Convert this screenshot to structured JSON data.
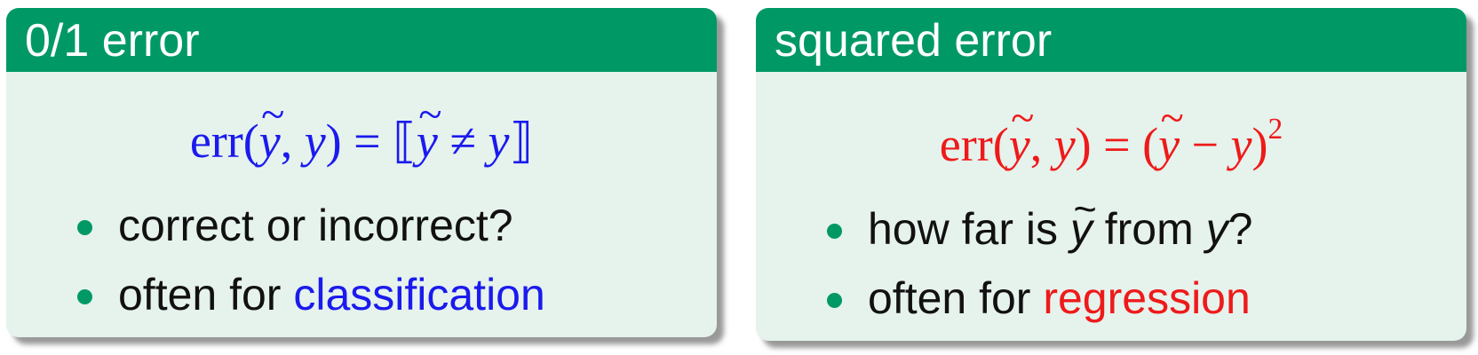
{
  "blocks": [
    {
      "title": "0/1 error",
      "formula": {
        "fn": "err",
        "ytilde": "y",
        "comma": ",",
        "y": "y",
        "rhs_open": "⟦",
        "rhs_ytilde": "y",
        "rhs_op": "≠",
        "rhs_y": "y",
        "rhs_close": "⟧"
      },
      "items": [
        {
          "text": "correct or incorrect?"
        },
        {
          "prefix": "often for ",
          "highlight": "classification"
        }
      ]
    },
    {
      "title": "squared error",
      "formula": {
        "fn": "err",
        "ytilde": "y",
        "comma": ",",
        "y": "y",
        "rhs_open": "(",
        "rhs_ytilde": "y",
        "rhs_op": "−",
        "rhs_y": "y",
        "rhs_close": ")",
        "exponent": "2"
      },
      "items": [
        {
          "prefix": "how far is ",
          "ytilde": "y",
          "middle": " from ",
          "y": "y",
          "suffix": "?"
        },
        {
          "prefix": "often for ",
          "highlight": "regression"
        }
      ]
    }
  ],
  "colors": {
    "header": "#009966",
    "body": "#e6f2ec",
    "blue": "#1a1aee",
    "red": "#ee1a1a"
  }
}
